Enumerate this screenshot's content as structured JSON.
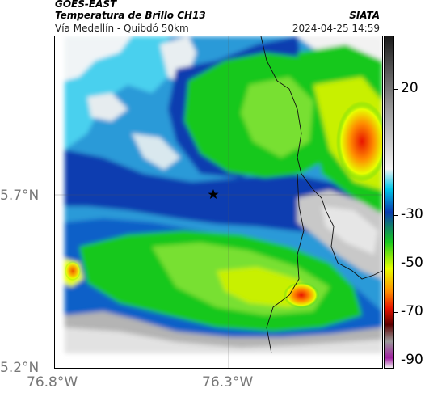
{
  "header": {
    "satellite": "GOES-EAST",
    "product": "Temperatura de Brillo CH13",
    "route": "Vía Medellín - Quibdó 50km",
    "org": "SIATA",
    "timestamp": "2024-04-25 14:59"
  },
  "axes": {
    "lat_ticks": [
      "5.7°N",
      "5.2°N"
    ],
    "lon_ticks": [
      "76.8°W",
      "76.3°W"
    ]
  },
  "colorbar": {
    "labels": [
      "20",
      "-30",
      "-50",
      "-70",
      "-90"
    ],
    "colors": {
      "warm_dark": "#1a1a1a",
      "warm_gray": "#9a9a9a",
      "light": "#f2f2f2",
      "cyan": "#00c8e8",
      "blue": "#0a3cb0",
      "green": "#18c81e",
      "yellow": "#e8ff00",
      "orange": "#ff8c00",
      "red": "#e81400",
      "dark_red": "#5a0000",
      "purple": "#a020a0"
    }
  },
  "map": {
    "marker_icon": "star-icon"
  }
}
